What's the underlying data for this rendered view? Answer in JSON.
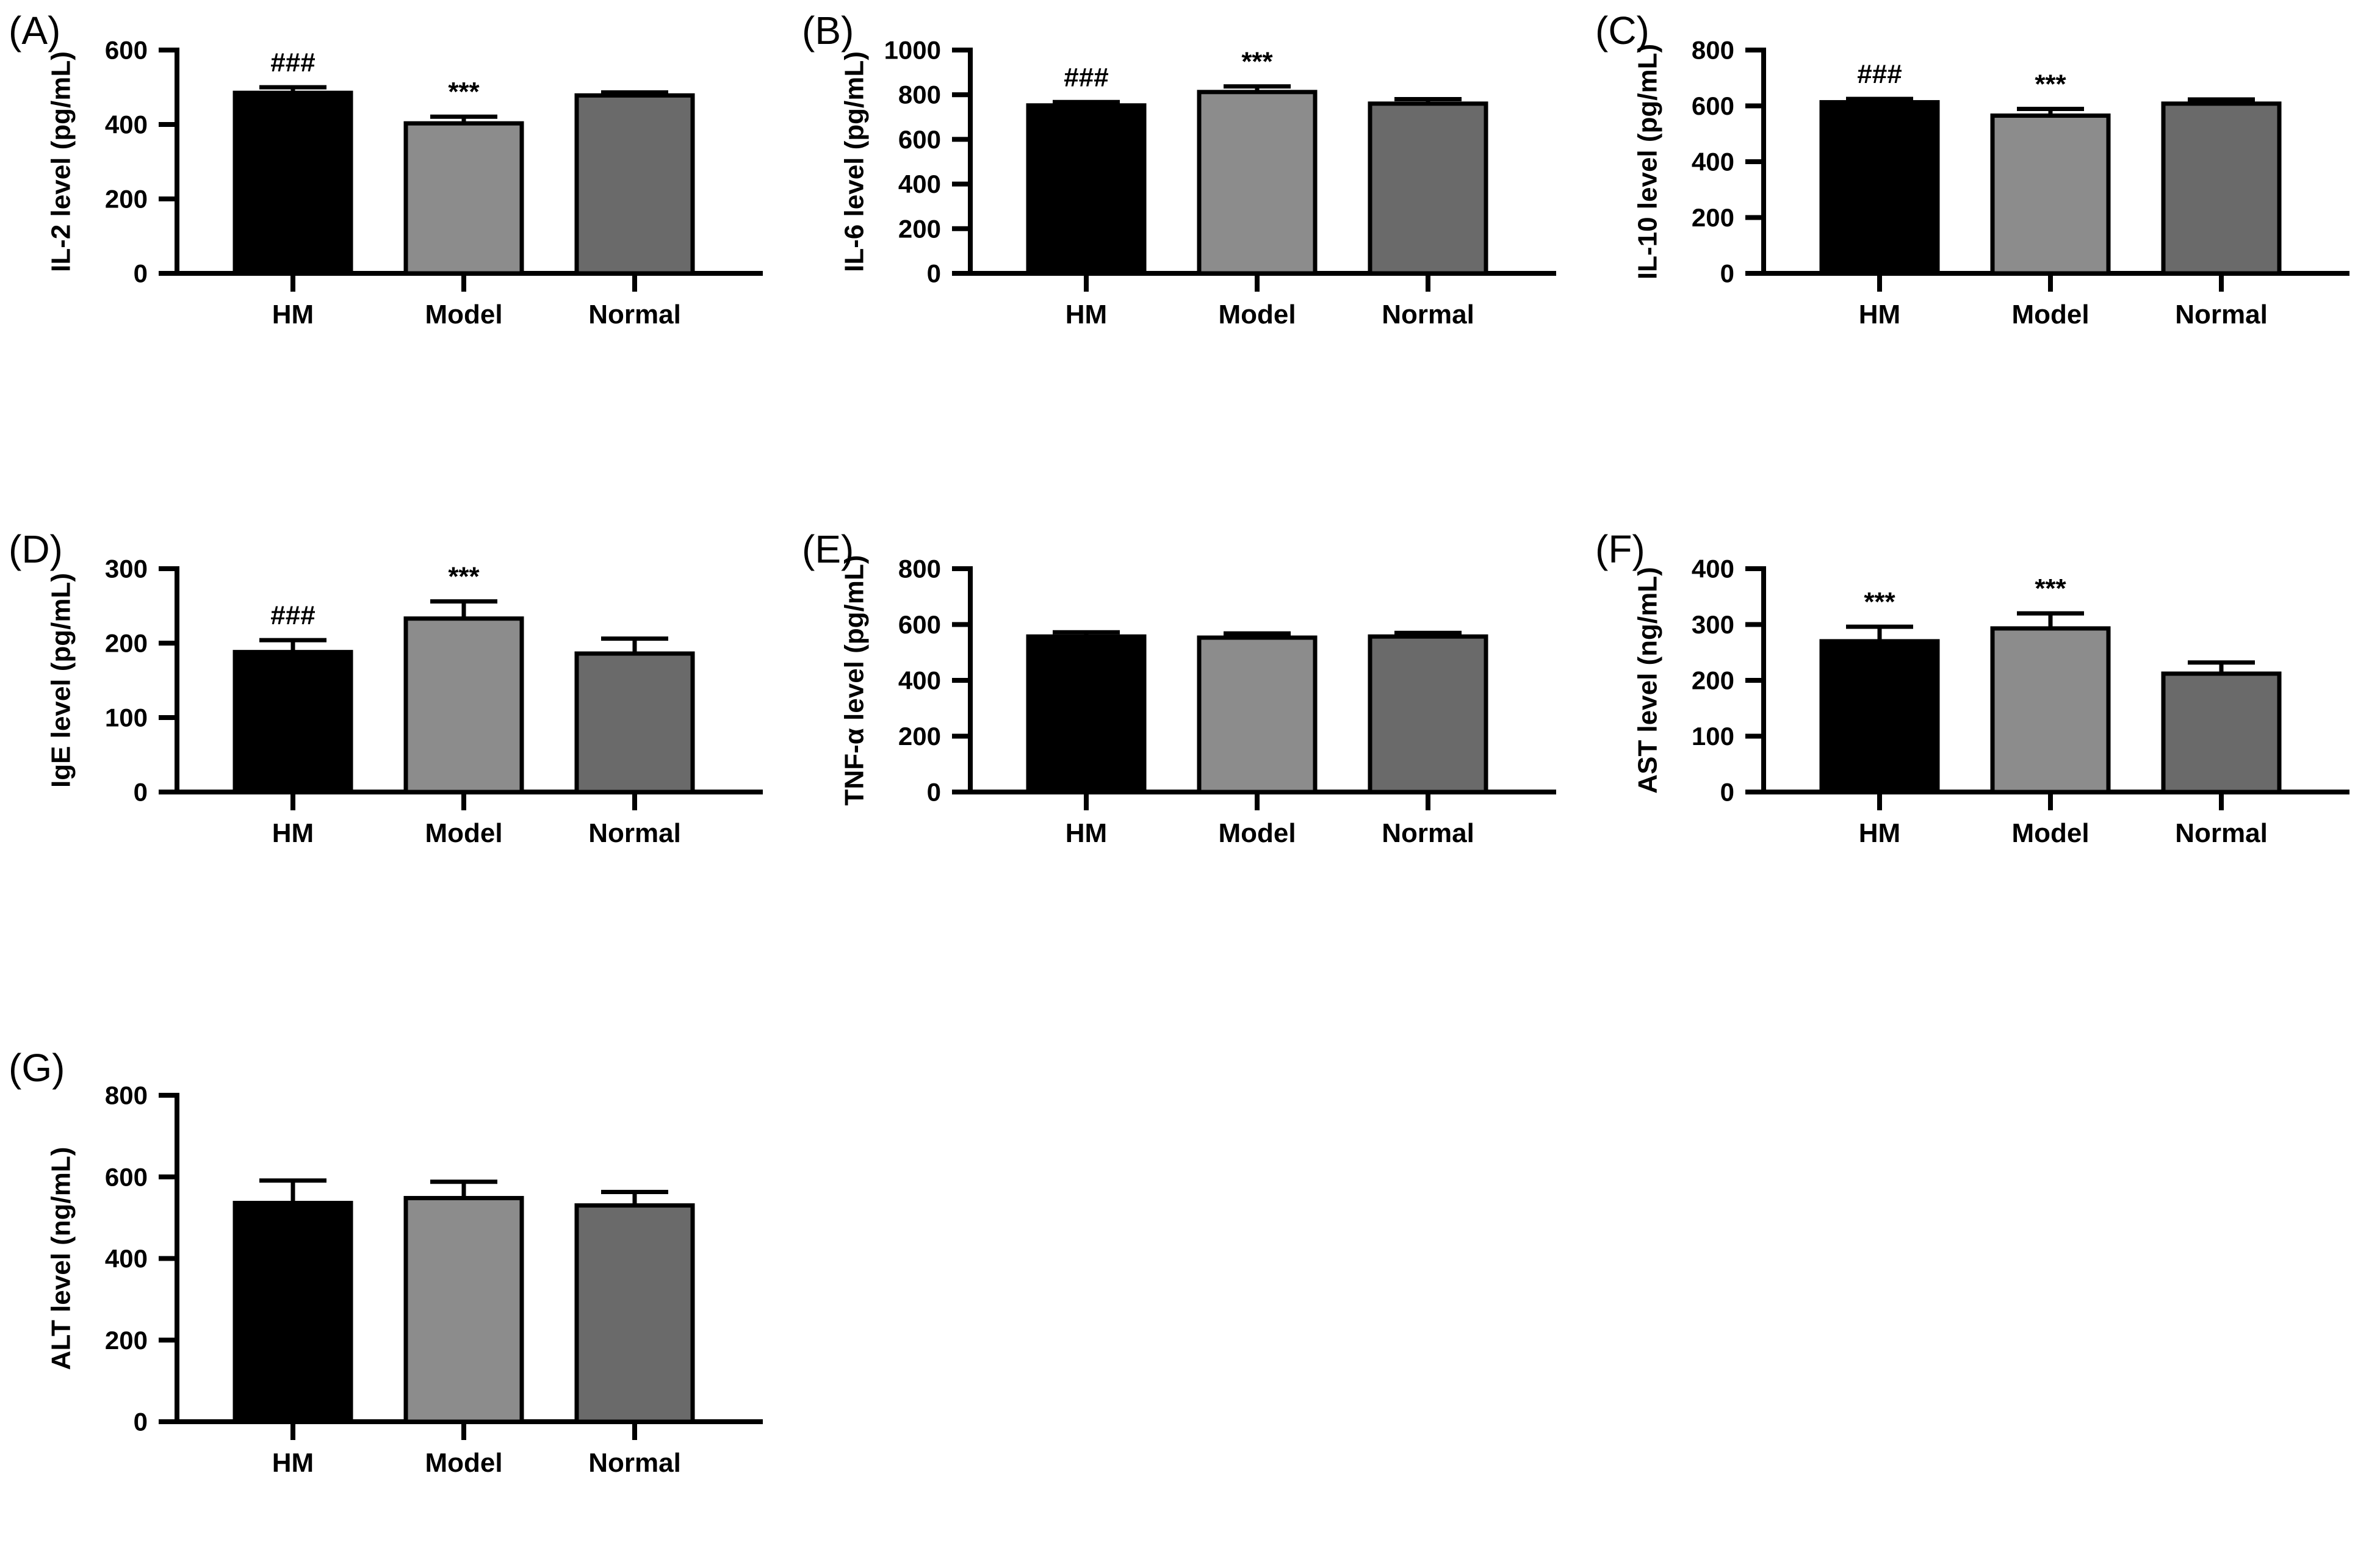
{
  "figure": {
    "background": "#ffffff",
    "groups": [
      "HM",
      "Model",
      "Normal"
    ],
    "bar_colors": {
      "HM": "#000000",
      "Model": "#8c8c8c",
      "Normal": "#6a6a6a"
    },
    "bar_outline_color": "#000000",
    "axis_color": "#000000",
    "text_color": "#000000",
    "significance_marks": {
      "model_vs_normal": "***",
      "hm_vs_model": "###"
    }
  },
  "chart_data": [
    {
      "id": "A",
      "panel_label": "(A)",
      "type": "bar",
      "title": "",
      "xlabel": "",
      "ylabel": "IL-2 level (pg/mL)",
      "ylim": [
        0,
        600
      ],
      "yticks": [
        0,
        200,
        400,
        600
      ],
      "categories": [
        "HM",
        "Model",
        "Normal"
      ],
      "values": [
        485,
        403,
        478
      ],
      "errors": [
        15,
        18,
        8
      ],
      "annotations": [
        "###",
        "***",
        ""
      ],
      "legend_position": "none",
      "grid": false
    },
    {
      "id": "B",
      "panel_label": "(B)",
      "type": "bar",
      "title": "",
      "xlabel": "",
      "ylabel": "IL-6 level (pg/mL)",
      "ylim": [
        0,
        1000
      ],
      "yticks": [
        0,
        200,
        400,
        600,
        800,
        1000
      ],
      "categories": [
        "HM",
        "Model",
        "Normal"
      ],
      "values": [
        752,
        812,
        760
      ],
      "errors": [
        15,
        25,
        20
      ],
      "annotations": [
        "###",
        "***",
        ""
      ],
      "legend_position": "none",
      "grid": false
    },
    {
      "id": "C",
      "panel_label": "(C)",
      "type": "bar",
      "title": "",
      "xlabel": "",
      "ylabel": "IL-10 level (pg/mL)",
      "ylim": [
        0,
        800
      ],
      "yticks": [
        0,
        200,
        400,
        600,
        800
      ],
      "categories": [
        "HM",
        "Model",
        "Normal"
      ],
      "values": [
        613,
        565,
        608
      ],
      "errors": [
        12,
        24,
        15
      ],
      "annotations": [
        "###",
        "***",
        ""
      ],
      "legend_position": "none",
      "grid": false
    },
    {
      "id": "D",
      "panel_label": "(D)",
      "type": "bar",
      "title": "",
      "xlabel": "",
      "ylabel": "IgE level (pg/mL)",
      "ylim": [
        0,
        300
      ],
      "yticks": [
        0,
        100,
        200,
        300
      ],
      "categories": [
        "HM",
        "Model",
        "Normal"
      ],
      "values": [
        188,
        233,
        186
      ],
      "errors": [
        16,
        23,
        20
      ],
      "annotations": [
        "###",
        "***",
        ""
      ],
      "legend_position": "none",
      "grid": false
    },
    {
      "id": "E",
      "panel_label": "(E)",
      "type": "bar",
      "title": "",
      "xlabel": "",
      "ylabel": "TNF-α level (pg/mL)",
      "ylim": [
        0,
        800
      ],
      "yticks": [
        0,
        200,
        400,
        600,
        800
      ],
      "categories": [
        "HM",
        "Model",
        "Normal"
      ],
      "values": [
        557,
        553,
        557
      ],
      "errors": [
        15,
        15,
        13
      ],
      "annotations": [
        "",
        "",
        ""
      ],
      "legend_position": "none",
      "grid": false
    },
    {
      "id": "F",
      "panel_label": "(F)",
      "type": "bar",
      "title": "",
      "xlabel": "",
      "ylabel": "AST level (ng/mL)",
      "ylim": [
        0,
        400
      ],
      "yticks": [
        0,
        100,
        200,
        300,
        400
      ],
      "categories": [
        "HM",
        "Model",
        "Normal"
      ],
      "values": [
        270,
        293,
        212
      ],
      "errors": [
        26,
        27,
        20
      ],
      "annotations": [
        "***",
        "***",
        ""
      ],
      "legend_position": "none",
      "grid": false
    },
    {
      "id": "G",
      "panel_label": "(G)",
      "type": "bar",
      "title": "",
      "xlabel": "",
      "ylabel": "ALT level (ng/mL)",
      "ylim": [
        0,
        800
      ],
      "yticks": [
        0,
        200,
        400,
        600,
        800
      ],
      "categories": [
        "HM",
        "Model",
        "Normal"
      ],
      "values": [
        536,
        548,
        530
      ],
      "errors": [
        55,
        40,
        33
      ],
      "annotations": [
        "",
        "",
        ""
      ],
      "legend_position": "none",
      "grid": false
    }
  ]
}
